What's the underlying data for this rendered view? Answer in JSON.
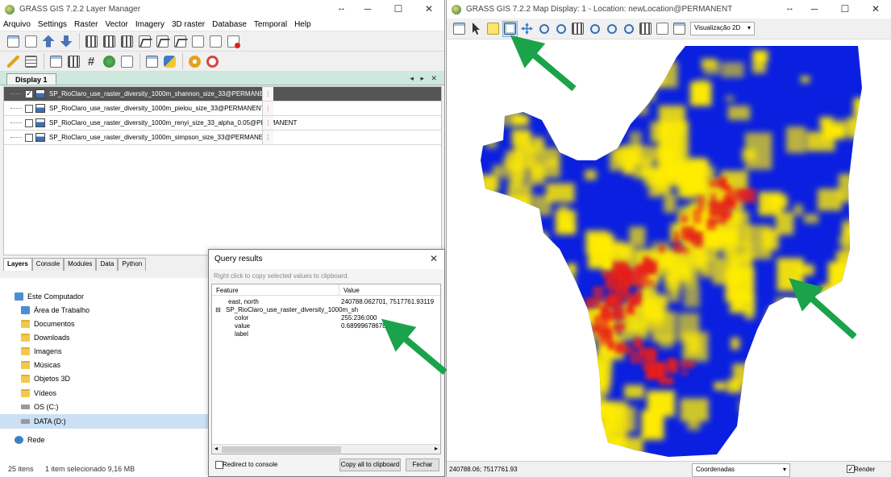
{
  "layer_manager": {
    "title": "GRASS GIS 7.2.2 Layer Manager",
    "menus": [
      "Arquivo",
      "Settings",
      "Raster",
      "Vector",
      "Imagery",
      "3D raster",
      "Database",
      "Temporal",
      "Help"
    ],
    "display_tab": "Display 1",
    "layers": [
      {
        "name": "SP_RioClaro_use_raster_diversity_1000m_shannon_size_33@PERMANENT",
        "checked": true,
        "selected": true
      },
      {
        "name": "SP_RioClaro_use_raster_diversity_1000m_pielou_size_33@PERMANENT",
        "checked": false,
        "selected": false
      },
      {
        "name": "SP_RioClaro_use_raster_diversity_1000m_renyi_size_33_alpha_0.05@PERMANENT",
        "checked": false,
        "selected": false
      },
      {
        "name": "SP_RioClaro_use_raster_diversity_1000m_simpson_size_33@PERMANENT",
        "checked": false,
        "selected": false
      }
    ],
    "bottom_tabs": [
      "Layers",
      "Console",
      "Modules",
      "Data",
      "Python"
    ],
    "active_bottom_tab": "Layers"
  },
  "explorer": {
    "items": [
      {
        "label": "Este Computador",
        "icon": "computer-icon"
      },
      {
        "label": "Área de Trabalho",
        "icon": "folder-icon"
      },
      {
        "label": "Documentos",
        "icon": "folder-icon"
      },
      {
        "label": "Downloads",
        "icon": "folder-icon"
      },
      {
        "label": "Imagens",
        "icon": "folder-icon"
      },
      {
        "label": "Músicas",
        "icon": "folder-icon"
      },
      {
        "label": "Objetos 3D",
        "icon": "folder-icon"
      },
      {
        "label": "Vídeos",
        "icon": "folder-icon"
      },
      {
        "label": "OS (C:)",
        "icon": "drive-icon"
      },
      {
        "label": "DATA (D:)",
        "icon": "drive-icon"
      },
      {
        "label": "Rede",
        "icon": "network-icon"
      }
    ],
    "status_count": "25 itens",
    "status_selection": "1 item selecionado  9,16 MB"
  },
  "query": {
    "title": "Query results",
    "hint": "Right click to copy selected values to clipboard.",
    "col_feature": "Feature",
    "col_value": "Value",
    "east_north_label": "east, north",
    "east_north_value": "240788.062701, 7517761.93119",
    "layer_label": "SP_RioClaro_use_raster_diversity_1000m_sh",
    "color_label": "color",
    "color_value": "255:236:000",
    "value_label": "value",
    "value_value": "0.689996786786821",
    "label_label": "label",
    "redirect_label": "Redirect to console",
    "copy_button": "Copy all to clipboard",
    "close_button": "Fechar"
  },
  "map_display": {
    "title": "GRASS GIS 7.2.2 Map Display: 1 - Location: newLocation@PERMANENT",
    "view_mode": "Visualização 2D",
    "coords": "240788.06; 7517761.93",
    "status_mode": "Coordenadas",
    "render_label": "Render",
    "render_checked": true
  },
  "colors": {
    "map_blue": "#0a1fe0",
    "map_yellow": "#ffec00",
    "map_red": "#e8201a",
    "arrow_green": "#1aa34a"
  }
}
